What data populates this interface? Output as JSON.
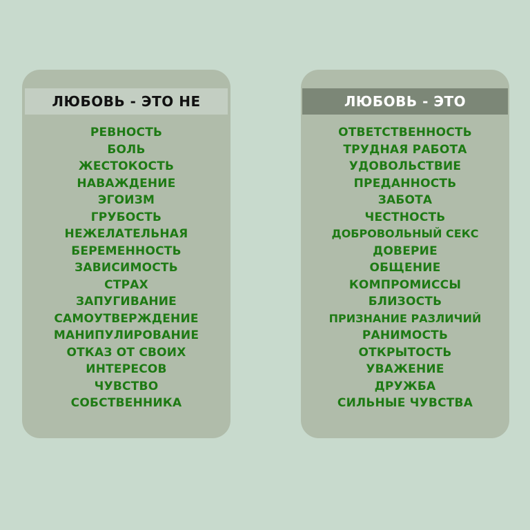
{
  "left_card": {
    "title": "ЛЮБОВЬ - ЭТО НЕ",
    "items": [
      "РЕВНОСТЬ",
      "БОЛЬ",
      "ЖЕСТОКОСТЬ",
      "НАВАЖДЕНИЕ",
      "ЭГОИЗМ",
      "ГРУБОСТЬ",
      "НЕЖЕЛАТЕЛЬНАЯ",
      "БЕРЕМЕННОСТЬ",
      "ЗАВИСИМОСТЬ",
      "СТРАХ",
      "ЗАПУГИВАНИЕ",
      "САМОУТВЕРЖДЕНИЕ",
      "МАНИПУЛИРОВАНИЕ",
      "ОТКАЗ ОТ СВОИХ",
      "ИНТЕРЕСОВ",
      "ЧУВСТВО",
      "СОБСТВЕННИКА"
    ]
  },
  "right_card": {
    "title": "ЛЮБОВЬ - ЭТО",
    "items": [
      "ОТВЕТСТВЕННОСТЬ",
      "ТРУДНАЯ РАБОТА",
      "УДОВОЛЬСТВИЕ",
      "ПРЕДАННОСТЬ",
      "ЗАБОТА",
      "ЧЕСТНОСТЬ",
      "ДОБРОВОЛЬНЫЙ СЕКС",
      "ДОВЕРИЕ",
      "ОБЩЕНИЕ",
      "КОМПРОМИССЫ",
      "БЛИЗОСТЬ",
      "ПРИЗНАНИЕ РАЗЛИЧИЙ",
      "РАНИМОСТЬ",
      "ОТКРЫТОСТЬ",
      "УВАЖЕНИЕ",
      "ДРУЖБА",
      "СИЛЬНЫЕ ЧУВСТВА"
    ]
  },
  "colors": {
    "background": "#c8dacd",
    "card": "#b0bcaa",
    "item_text": "#1e7a14",
    "left_header_bg": "#c3cec2",
    "right_header_bg": "#7c8777"
  }
}
